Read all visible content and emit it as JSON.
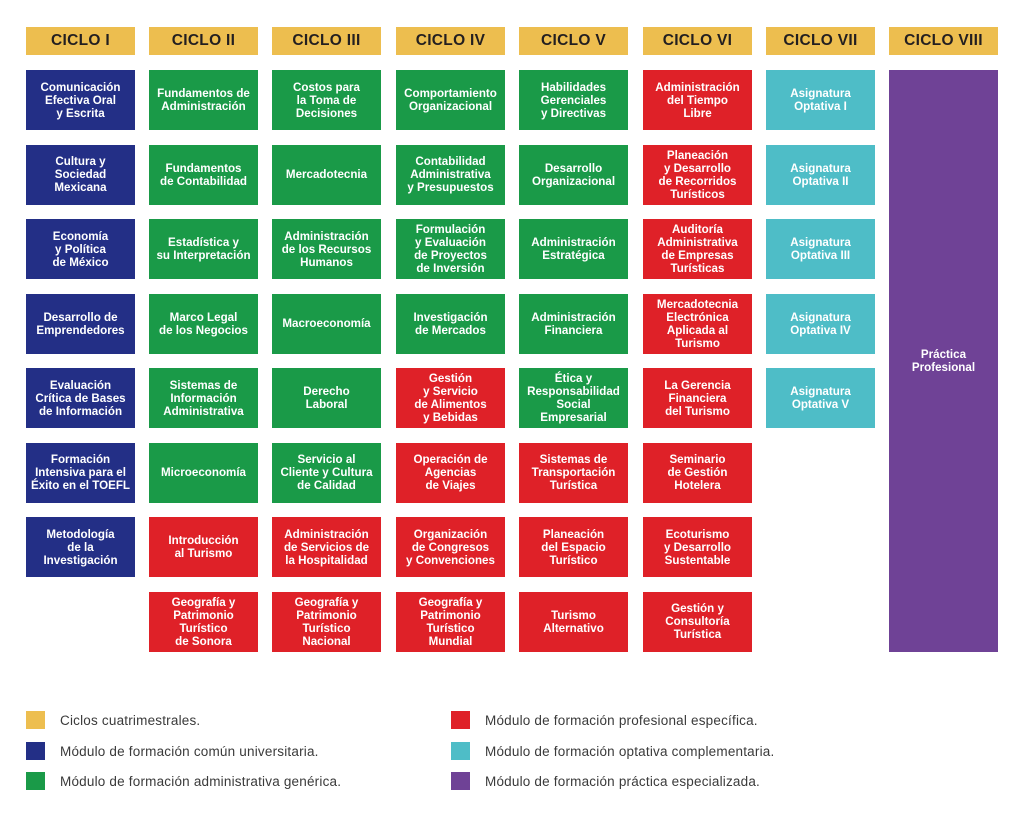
{
  "colors": {
    "ciclos": "#EDBE4F",
    "comun": "#232F86",
    "administrativa": "#1A9A48",
    "profesional": "#DF2128",
    "optativa": "#4EBDC7",
    "practica": "#6F4296"
  },
  "ciclos": [
    {
      "label": "CICLO I",
      "courses": [
        {
          "text": "Comunicación\nEfectiva Oral\ny Escrita",
          "module": "comun"
        },
        {
          "text": "Cultura y\nSociedad\nMexicana",
          "module": "comun"
        },
        {
          "text": "Economía\ny Política\nde México",
          "module": "comun"
        },
        {
          "text": "Desarrollo de\nEmprendedores",
          "module": "comun"
        },
        {
          "text": "Evaluación\nCrítica de Bases\nde Información",
          "module": "comun"
        },
        {
          "text": "Formación\nIntensiva para el\nÉxito en el TOEFL",
          "module": "comun"
        },
        {
          "text": "Metodología\nde la\nInvestigación",
          "module": "comun"
        }
      ]
    },
    {
      "label": "CICLO II",
      "courses": [
        {
          "text": "Fundamentos de\nAdministración",
          "module": "administrativa"
        },
        {
          "text": "Fundamentos\nde Contabilidad",
          "module": "administrativa"
        },
        {
          "text": "Estadística y\nsu Interpretación",
          "module": "administrativa"
        },
        {
          "text": "Marco Legal\nde los Negocios",
          "module": "administrativa"
        },
        {
          "text": "Sistemas de\nInformación\nAdministrativa",
          "module": "administrativa"
        },
        {
          "text": "Microeconomía",
          "module": "administrativa"
        },
        {
          "text": "Introducción\nal Turismo",
          "module": "profesional"
        },
        {
          "text": "Geografía y\nPatrimonio\nTurístico\nde Sonora",
          "module": "profesional"
        }
      ]
    },
    {
      "label": "CICLO III",
      "courses": [
        {
          "text": "Costos para\nla Toma de\nDecisiones",
          "module": "administrativa"
        },
        {
          "text": "Mercadotecnia",
          "module": "administrativa"
        },
        {
          "text": "Administración\nde los Recursos\nHumanos",
          "module": "administrativa"
        },
        {
          "text": "Macroeconomía",
          "module": "administrativa"
        },
        {
          "text": "Derecho\nLaboral",
          "module": "administrativa"
        },
        {
          "text": "Servicio al\nCliente y Cultura\nde Calidad",
          "module": "administrativa"
        },
        {
          "text": "Administración\nde Servicios de\nla Hospitalidad",
          "module": "profesional"
        },
        {
          "text": "Geografía y\nPatrimonio\nTurístico\nNacional",
          "module": "profesional"
        }
      ]
    },
    {
      "label": "CICLO IV",
      "courses": [
        {
          "text": "Comportamiento\nOrganizacional",
          "module": "administrativa"
        },
        {
          "text": "Contabilidad\nAdministrativa\ny Presupuestos",
          "module": "administrativa"
        },
        {
          "text": "Formulación\ny Evaluación\nde Proyectos\nde Inversión",
          "module": "administrativa"
        },
        {
          "text": "Investigación\nde Mercados",
          "module": "administrativa"
        },
        {
          "text": "Gestión\ny Servicio\nde Alimentos\ny Bebidas",
          "module": "profesional"
        },
        {
          "text": "Operación de\nAgencias\nde Viajes",
          "module": "profesional"
        },
        {
          "text": "Organización\nde Congresos\ny Convenciones",
          "module": "profesional"
        },
        {
          "text": "Geografía y\nPatrimonio\nTurístico\nMundial",
          "module": "profesional"
        }
      ]
    },
    {
      "label": "CICLO V",
      "courses": [
        {
          "text": "Habilidades\nGerenciales\ny Directivas",
          "module": "administrativa"
        },
        {
          "text": "Desarrollo\nOrganizacional",
          "module": "administrativa"
        },
        {
          "text": "Administración\nEstratégica",
          "module": "administrativa"
        },
        {
          "text": "Administración\nFinanciera",
          "module": "administrativa"
        },
        {
          "text": "Ética y\nResponsabilidad\nSocial\nEmpresarial",
          "module": "administrativa"
        },
        {
          "text": "Sistemas de\nTransportación\nTurística",
          "module": "profesional"
        },
        {
          "text": "Planeación\ndel Espacio\nTurístico",
          "module": "profesional"
        },
        {
          "text": "Turismo\nAlternativo",
          "module": "profesional"
        }
      ]
    },
    {
      "label": "CICLO VI",
      "courses": [
        {
          "text": "Administración\ndel Tiempo\nLibre",
          "module": "profesional"
        },
        {
          "text": "Planeación\ny Desarrollo\nde Recorridos\nTurísticos",
          "module": "profesional"
        },
        {
          "text": "Auditoría\nAdministrativa\nde Empresas\nTurísticas",
          "module": "profesional"
        },
        {
          "text": "Mercadotecnia\nElectrónica\nAplicada al\nTurismo",
          "module": "profesional"
        },
        {
          "text": "La Gerencia\nFinanciera\ndel Turismo",
          "module": "profesional"
        },
        {
          "text": "Seminario\nde Gestión\nHotelera",
          "module": "profesional"
        },
        {
          "text": "Ecoturismo\ny Desarrollo\nSustentable",
          "module": "profesional"
        },
        {
          "text": "Gestión y\nConsultoría\nTurística",
          "module": "profesional"
        }
      ]
    },
    {
      "label": "CICLO VII",
      "courses": [
        {
          "text": "Asignatura\nOptativa I",
          "module": "optativa"
        },
        {
          "text": "Asignatura\nOptativa II",
          "module": "optativa"
        },
        {
          "text": "Asignatura\nOptativa III",
          "module": "optativa"
        },
        {
          "text": "Asignatura\nOptativa IV",
          "module": "optativa"
        },
        {
          "text": "Asignatura\nOptativa V",
          "module": "optativa"
        }
      ]
    },
    {
      "label": "CICLO VIII",
      "courses": [
        {
          "text": "Práctica\nProfesional",
          "module": "practica"
        }
      ]
    }
  ],
  "legend": [
    {
      "label": "Ciclos cuatrimestrales.",
      "key": "ciclos"
    },
    {
      "label": "Módulo de formación común universitaria.",
      "key": "comun"
    },
    {
      "label": "Módulo de formación administrativa genérica.",
      "key": "administrativa"
    },
    {
      "label": "Módulo de formación profesional específica.",
      "key": "profesional"
    },
    {
      "label": "Módulo de formación optativa complementaria.",
      "key": "optativa"
    },
    {
      "label": "Módulo de formación práctica especializada.",
      "key": "practica"
    }
  ]
}
